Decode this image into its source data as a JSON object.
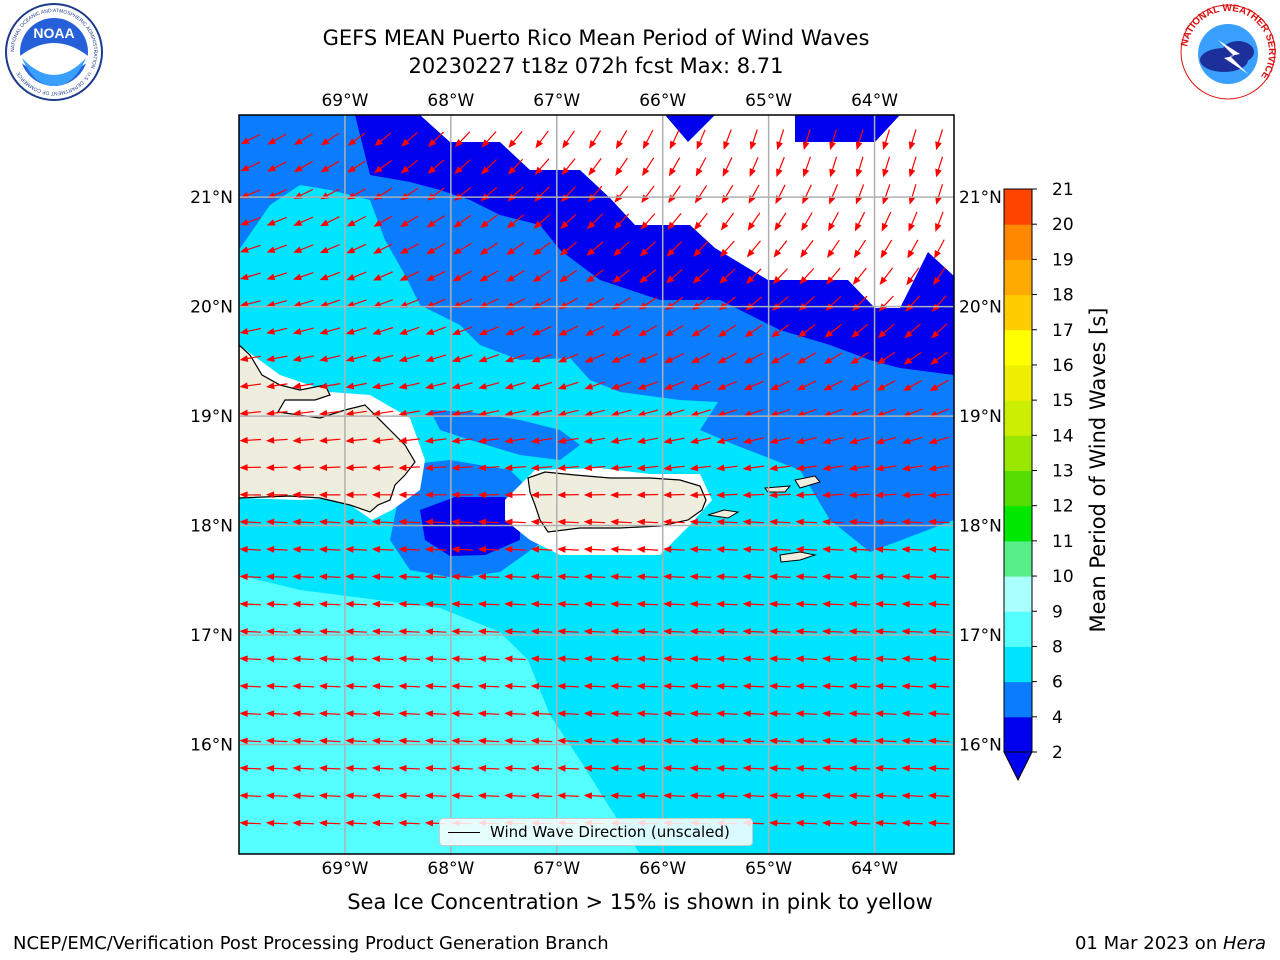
{
  "title": {
    "line1": "GEFS MEAN Puerto Rico Mean Period of Wind Waves",
    "line2": "20230227 t18z 072h fcst   Max: 8.71"
  },
  "logos": {
    "left": {
      "name": "noaa-logo",
      "text": "NOAA",
      "ring_text": "NATIONAL OCEANIC AND ATMOSPHERIC ADMINISTRATION · U.S. DEPARTMENT OF COMMERCE"
    },
    "right": {
      "name": "nws-logo",
      "ring_text": "NATIONAL WEATHER SERVICE"
    }
  },
  "map": {
    "lon_labels": [
      "69°W",
      "68°W",
      "67°W",
      "66°W",
      "65°W",
      "64°W"
    ],
    "lat_labels": [
      "21°N",
      "20°N",
      "19°N",
      "18°N",
      "17°N",
      "16°N"
    ],
    "extent": {
      "lon_min": -70.0,
      "lon_max": -63.25,
      "lat_min": 15.0,
      "lat_max": 21.75
    },
    "arrow_color": "#ff0000",
    "land_color": "#efedde",
    "grid_color": "#b0b0b0"
  },
  "legend": {
    "label": "Wind Wave Direction (unscaled)"
  },
  "colorbar": {
    "label": "Mean Period of Wind Waves [s]",
    "ticks": [
      "2",
      "4",
      "6",
      "8",
      "9",
      "10",
      "11",
      "12",
      "13",
      "14",
      "15",
      "16",
      "17",
      "18",
      "19",
      "20",
      "21"
    ],
    "levels": [
      2,
      4,
      6,
      8,
      9,
      10,
      11,
      12,
      13,
      14,
      15,
      16,
      17,
      18,
      19,
      20,
      21
    ],
    "colors": [
      "#0000ee",
      "#0a7dff",
      "#00e5ff",
      "#55ffff",
      "#aaffff",
      "#55ee88",
      "#00e800",
      "#55dd00",
      "#99e600",
      "#ccee00",
      "#eeee00",
      "#ffff00",
      "#ffcc00",
      "#ffaa00",
      "#ff8800",
      "#ff4400",
      "#ff0000"
    ],
    "under_color": "#0000ee"
  },
  "chart_data": {
    "type": "contourf",
    "variable": "Mean Period of Wind Waves",
    "units": "s",
    "max": 8.71,
    "period_bands": [
      {
        "range": [
          2,
          4
        ],
        "color": "#0000ee",
        "region": "north-east waters near 21°N–21.75°N and 64°W–63.25°W, small patch south of 68°W near 18°N"
      },
      {
        "range": [
          4,
          6
        ],
        "color": "#0a7dff",
        "region": "band across 19°N–21°N east of 68°W and around Virgin Islands"
      },
      {
        "range": [
          6,
          8
        ],
        "color": "#00e5ff",
        "region": "west and south waters, 16°N–19.5°N"
      },
      {
        "range": [
          8,
          9
        ],
        "color": "#55ffff",
        "region": "south-west waters 15°N–17.5°N, west of 66°W"
      }
    ],
    "wind_wave_direction": "arrows point generally toward the west (easterly wind waves) in the south, turning to south-southwest in the north-east"
  },
  "ice_note": "Sea Ice Concentration > 15% is shown in pink to yellow",
  "footer": {
    "left": "NCEP/EMC/Verification Post Processing Product Generation Branch",
    "date": "01 Mar 2023 on ",
    "machine": "Hera"
  }
}
